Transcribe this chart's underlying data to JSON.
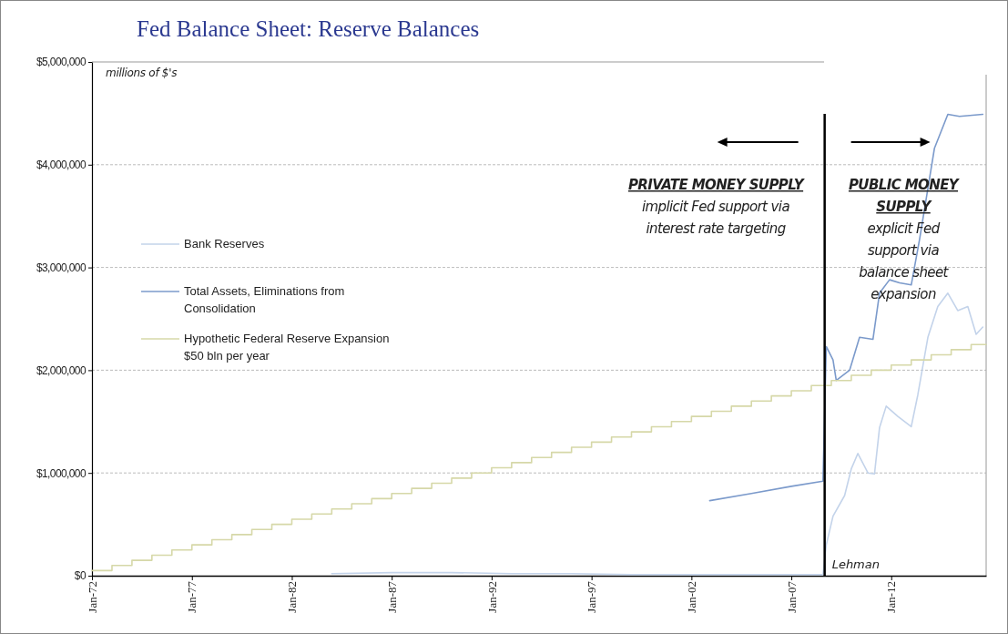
{
  "chart_data": {
    "type": "line",
    "title": "Fed Balance Sheet: Reserve Balances",
    "annotations": [
      "millions of $'s",
      "PRIVATE MONEY SUPPLY",
      "implicit Fed support via interest rate targeting",
      "PUBLIC MONEY SUPPLY",
      "explicit Fed support via balance sheet expansion"
    ],
    "xlim": [
      "1972-01",
      "2016-10"
    ],
    "xticks": [
      {
        "value": "1972-01",
        "label": "Jan-72"
      },
      {
        "value": "1977-01",
        "label": "Jan-77"
      },
      {
        "value": "1982-01",
        "label": "Jan-82"
      },
      {
        "value": "1987-01",
        "label": "Jan-87"
      },
      {
        "value": "1992-01",
        "label": "Jan-92"
      },
      {
        "value": "1997-01",
        "label": "Jan-97"
      },
      {
        "value": "2002-01",
        "label": "Jan-02"
      },
      {
        "value": "2007-01",
        "label": "Jan-07"
      },
      {
        "value": "2012-01",
        "label": "Jan-12"
      }
    ],
    "ylim": [
      0,
      5000000
    ],
    "yticks": [
      {
        "value": 0,
        "label": "$0"
      },
      {
        "value": 1000000,
        "label": "$1,000,000"
      },
      {
        "value": 2000000,
        "label": "$2,000,000"
      },
      {
        "value": 3000000,
        "label": "$3,000,000"
      },
      {
        "value": 4000000,
        "label": "$4,000,000"
      },
      {
        "value": 5000000,
        "label": "$5,000,000"
      }
    ],
    "grid": "y",
    "legend": "left",
    "line_style": "solid",
    "marker": "none",
    "ref_lines": [
      {
        "axis": "x",
        "value": "2008-09",
        "label": "Lehman",
        "color": "#000000"
      }
    ],
    "series": [
      {
        "name": "Bank Reserves",
        "color": "#c3d3ea",
        "x": [
          "1984-01",
          "1987-01",
          "1990-01",
          "1993-01",
          "1996-01",
          "1999-01",
          "2002-01",
          "2005-01",
          "2008-08",
          "2008-10",
          "2009-02",
          "2009-09",
          "2010-01",
          "2010-05",
          "2010-11",
          "2011-03",
          "2011-06",
          "2011-10",
          "2012-05",
          "2013-01",
          "2013-05",
          "2013-11",
          "2014-05",
          "2014-11",
          "2015-05",
          "2015-11",
          "2016-04",
          "2016-08"
        ],
        "values": [
          20000,
          30000,
          30000,
          20000,
          20000,
          10000,
          10000,
          10000,
          10000,
          300000,
          580000,
          780000,
          1040000,
          1190000,
          1000000,
          990000,
          1440000,
          1650000,
          1550000,
          1450000,
          1760000,
          2320000,
          2620000,
          2750000,
          2580000,
          2620000,
          2350000,
          2420000
        ]
      },
      {
        "name": "Total Assets, Eliminations from Consolidation",
        "color": "#7b9acb",
        "x": [
          "2002-12",
          "2005-01",
          "2007-01",
          "2008-08",
          "2008-10",
          "2009-02",
          "2009-04",
          "2009-12",
          "2010-06",
          "2011-02",
          "2011-06",
          "2011-12",
          "2012-06",
          "2013-01",
          "2013-06",
          "2014-03",
          "2014-11",
          "2015-06",
          "2016-08"
        ],
        "values": [
          730000,
          800000,
          870000,
          920000,
          2230000,
          2100000,
          1900000,
          2000000,
          2320000,
          2300000,
          2750000,
          2880000,
          2850000,
          2830000,
          3270000,
          4160000,
          4490000,
          4470000,
          4490000
        ]
      },
      {
        "name": "Hypothetic Federal Reserve Expansion $50 bln per year",
        "type": "step",
        "color": "#d6d8a8",
        "x": [
          "1972-01",
          "1973-01",
          "1974-01",
          "1975-01",
          "1976-01",
          "1977-01",
          "1978-01",
          "1979-01",
          "1980-01",
          "1981-01",
          "1982-01",
          "1983-01",
          "1984-01",
          "1985-01",
          "1986-01",
          "1987-01",
          "1988-01",
          "1989-01",
          "1990-01",
          "1991-01",
          "1992-01",
          "1993-01",
          "1994-01",
          "1995-01",
          "1996-01",
          "1997-01",
          "1998-01",
          "1999-01",
          "2000-01",
          "2001-01",
          "2002-01",
          "2003-01",
          "2004-01",
          "2005-01",
          "2006-01",
          "2007-01",
          "2008-01",
          "2009-01",
          "2010-01",
          "2011-01",
          "2012-01",
          "2013-01",
          "2014-01",
          "2015-01",
          "2016-01",
          "2016-10"
        ],
        "values": [
          50000,
          100000,
          150000,
          200000,
          250000,
          300000,
          350000,
          400000,
          450000,
          500000,
          550000,
          600000,
          650000,
          700000,
          750000,
          800000,
          850000,
          900000,
          950000,
          1000000,
          1050000,
          1100000,
          1150000,
          1200000,
          1250000,
          1300000,
          1350000,
          1400000,
          1450000,
          1500000,
          1550000,
          1600000,
          1650000,
          1700000,
          1750000,
          1800000,
          1850000,
          1900000,
          1950000,
          2000000,
          2050000,
          2100000,
          2150000,
          2200000,
          2250000,
          2250000
        ]
      }
    ]
  }
}
